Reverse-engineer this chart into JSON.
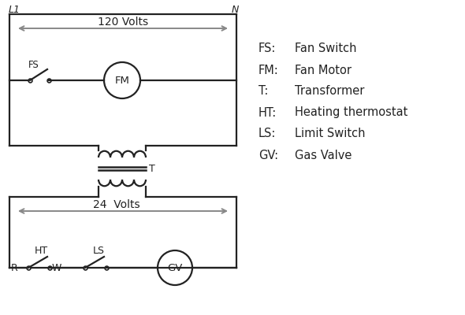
{
  "bg_color": "#ffffff",
  "line_color": "#888888",
  "dark_color": "#222222",
  "legend": [
    [
      "FS:",
      "Fan Switch"
    ],
    [
      "FM:",
      "Fan Motor"
    ],
    [
      "T:",
      "Transformer"
    ],
    [
      "HT:",
      "Heating thermostat"
    ],
    [
      "LS:",
      "Limit Switch"
    ],
    [
      "GV:",
      "Gas Valve"
    ]
  ]
}
